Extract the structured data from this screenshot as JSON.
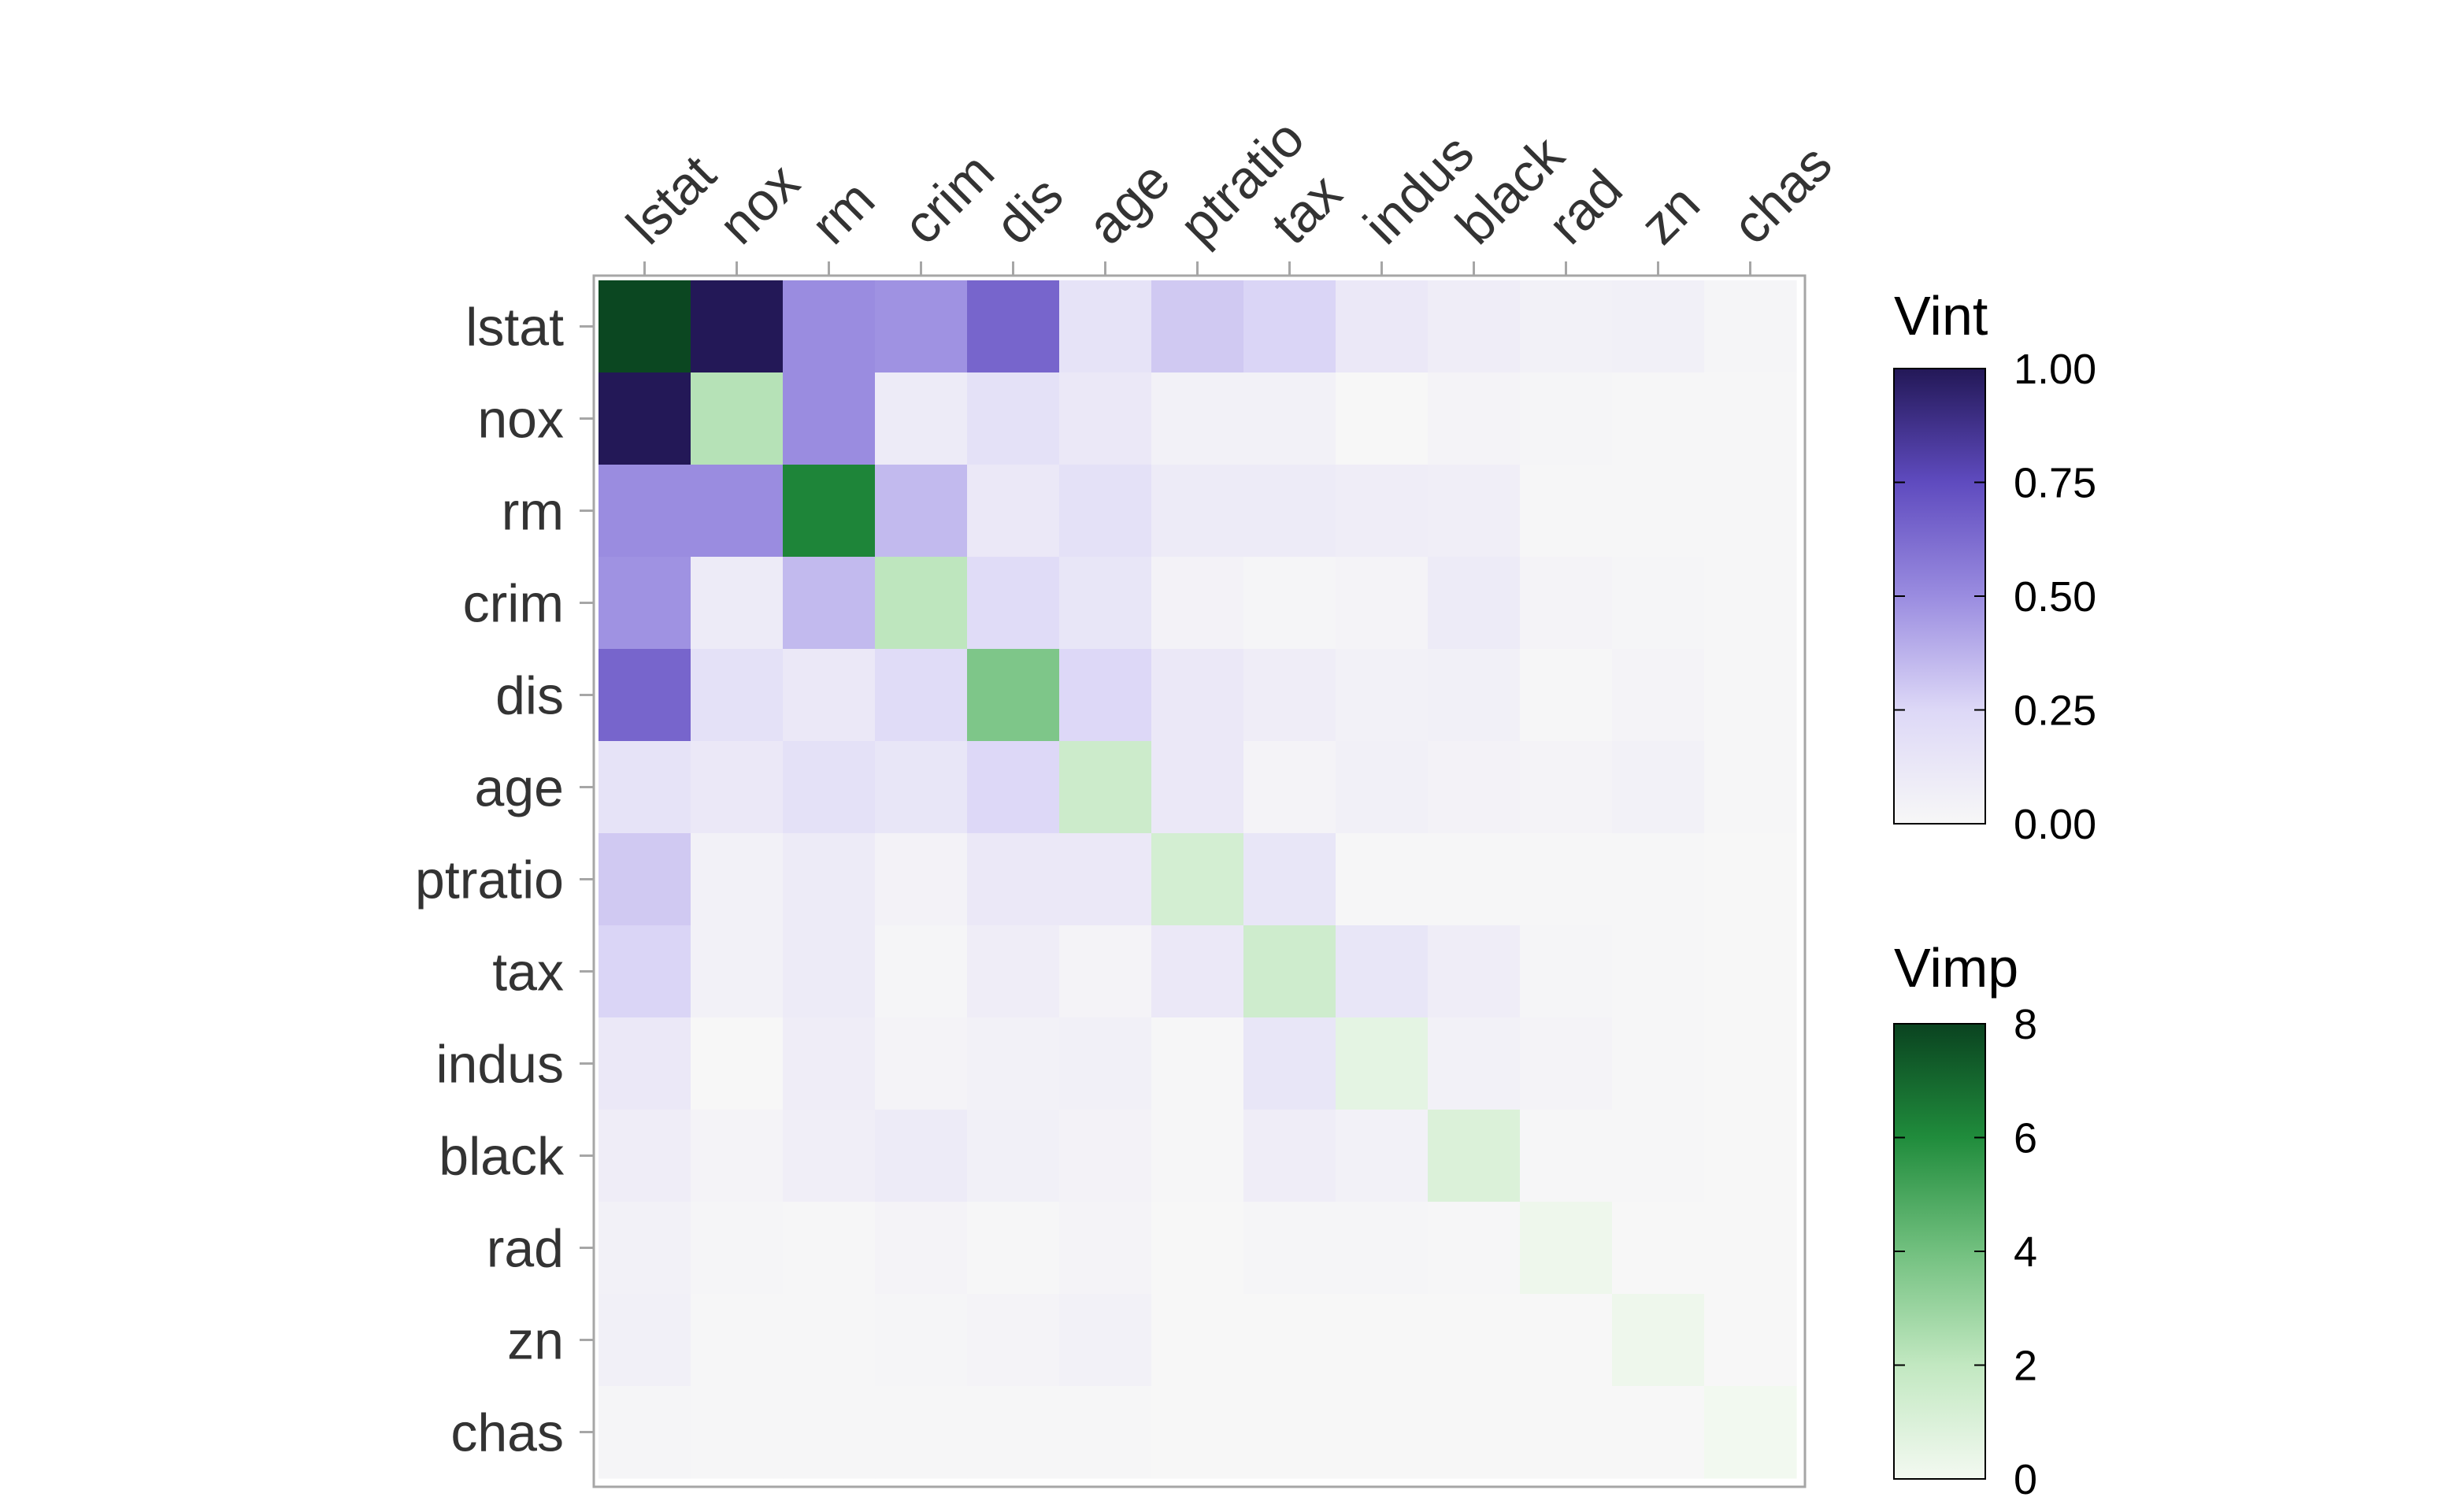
{
  "chart_data": {
    "type": "heatmap",
    "variables": [
      "lstat",
      "nox",
      "rm",
      "crim",
      "dis",
      "age",
      "ptratio",
      "tax",
      "indus",
      "black",
      "rad",
      "zn",
      "chas"
    ],
    "diagonal_measure": "Vimp",
    "off_diagonal_measure": "Vint",
    "vimp": [
      7.9,
      2.3,
      6.2,
      2.1,
      3.7,
      1.6,
      1.3,
      1.5,
      0.6,
      1.0,
      0.2,
      0.2,
      0.05
    ],
    "vint": [
      [
        null,
        1.0,
        0.5,
        0.48,
        0.65,
        0.16,
        0.3,
        0.26,
        0.12,
        0.08,
        0.05,
        0.06,
        0.02
      ],
      [
        1.0,
        null,
        0.5,
        0.1,
        0.18,
        0.12,
        0.05,
        0.05,
        0.0,
        0.03,
        0.02,
        0.01,
        0.01
      ],
      [
        0.5,
        0.5,
        null,
        0.35,
        0.12,
        0.18,
        0.1,
        0.1,
        0.08,
        0.07,
        0.01,
        0.01,
        0.01
      ],
      [
        0.48,
        0.1,
        0.35,
        null,
        0.22,
        0.14,
        0.04,
        0.02,
        0.03,
        0.1,
        0.03,
        0.02,
        0.01
      ],
      [
        0.65,
        0.18,
        0.12,
        0.22,
        null,
        0.25,
        0.12,
        0.08,
        0.05,
        0.06,
        0.01,
        0.03,
        0.01
      ],
      [
        0.16,
        0.12,
        0.18,
        0.14,
        0.25,
        null,
        0.12,
        0.03,
        0.06,
        0.04,
        0.03,
        0.05,
        0.01
      ],
      [
        0.3,
        0.05,
        0.1,
        0.04,
        0.12,
        0.12,
        null,
        0.14,
        0.01,
        0.01,
        0.01,
        0.01,
        0.0
      ],
      [
        0.26,
        0.05,
        0.1,
        0.02,
        0.08,
        0.03,
        0.12,
        null,
        0.14,
        0.08,
        0.02,
        0.01,
        0.0
      ],
      [
        0.12,
        0.0,
        0.08,
        0.03,
        0.05,
        0.06,
        0.01,
        0.14,
        null,
        0.05,
        0.03,
        0.01,
        0.0
      ],
      [
        0.08,
        0.03,
        0.07,
        0.1,
        0.06,
        0.04,
        0.01,
        0.08,
        0.05,
        null,
        0.01,
        0.01,
        0.0
      ],
      [
        0.05,
        0.02,
        0.01,
        0.03,
        0.01,
        0.03,
        0.0,
        0.02,
        0.02,
        0.01,
        null,
        0.0,
        0.0
      ],
      [
        0.06,
        0.01,
        0.01,
        0.02,
        0.03,
        0.05,
        0.0,
        0.0,
        0.0,
        0.0,
        0.0,
        null,
        0.0
      ],
      [
        0.02,
        0.01,
        0.01,
        0.01,
        0.01,
        0.01,
        0.0,
        0.0,
        0.0,
        0.0,
        0.0,
        0.0,
        null
      ]
    ],
    "legends": [
      {
        "title": "Vint",
        "range": [
          0,
          1
        ],
        "ticks": [
          0,
          0.25,
          0.5,
          0.75,
          1
        ],
        "tick_labels": [
          "0.00",
          "0.25",
          "0.50",
          "0.75",
          "1.00"
        ],
        "colors": [
          "#f7f7f7",
          "#ddd8f7",
          "#9a8ce0",
          "#5f4bbf",
          "#231857"
        ]
      },
      {
        "title": "Vimp",
        "range": [
          0,
          8
        ],
        "ticks": [
          0,
          2,
          4,
          6,
          8
        ],
        "tick_labels": [
          "0",
          "2",
          "4",
          "6",
          "8"
        ],
        "colors": [
          "#f3f9f1",
          "#c2e8c1",
          "#72c07f",
          "#208c3c",
          "#0a4320"
        ]
      }
    ],
    "x_axis_position": "top",
    "grid": false,
    "legend_placement": "right"
  }
}
